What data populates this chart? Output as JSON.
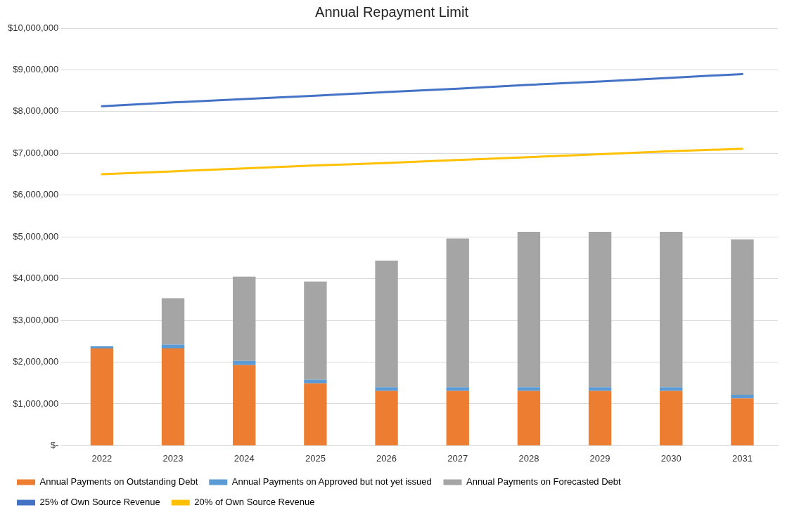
{
  "chart_data": {
    "type": "bar",
    "title": "Annual Repayment Limit",
    "stacked": true,
    "grid": "y",
    "legend": "bottom",
    "categories": [
      "2022",
      "2023",
      "2024",
      "2025",
      "2026",
      "2027",
      "2028",
      "2029",
      "2030",
      "2031"
    ],
    "ylim": [
      0,
      10000000
    ],
    "yticks": [
      {
        "value": 0,
        "label": "$-"
      },
      {
        "value": 1000000,
        "label": "$1,000,000"
      },
      {
        "value": 2000000,
        "label": "$2,000,000"
      },
      {
        "value": 3000000,
        "label": "$3,000,000"
      },
      {
        "value": 4000000,
        "label": "$4,000,000"
      },
      {
        "value": 5000000,
        "label": "$5,000,000"
      },
      {
        "value": 6000000,
        "label": "$6,000,000"
      },
      {
        "value": 7000000,
        "label": "$7,000,000"
      },
      {
        "value": 8000000,
        "label": "$8,000,000"
      },
      {
        "value": 9000000,
        "label": "$9,000,000"
      },
      {
        "value": 10000000,
        "label": "$10,000,000"
      }
    ],
    "series": [
      {
        "name": "Annual Payments on Outstanding Debt",
        "color": "#ed7d31",
        "values": [
          2330000,
          2330000,
          1930000,
          1490000,
          1310000,
          1310000,
          1310000,
          1310000,
          1310000,
          1130000
        ]
      },
      {
        "name": "Annual Payments on Approved but not yet issued",
        "color": "#5b9bd5",
        "values": [
          50000,
          90000,
          100000,
          90000,
          90000,
          90000,
          90000,
          90000,
          90000,
          90000
        ]
      },
      {
        "name": "Annual Payments on Forecasted Debt",
        "color": "#a5a5a5",
        "values": [
          null,
          1110000,
          2020000,
          2350000,
          3030000,
          3560000,
          3720000,
          3720000,
          3720000,
          3720000
        ]
      },
      {
        "name": "25% of Own Source Revenue",
        "type": "line",
        "color": "#4472c4",
        "marker": "none",
        "values": [
          8130000,
          8220000,
          8300000,
          8380000,
          8470000,
          8550000,
          8640000,
          8720000,
          8810000,
          8900000
        ]
      },
      {
        "name": "20% of Own Source Revenue",
        "type": "line",
        "color": "#ffc000",
        "marker": "none",
        "values": [
          6500000,
          6570000,
          6640000,
          6710000,
          6770000,
          6840000,
          6910000,
          6980000,
          7050000,
          7110000
        ]
      }
    ]
  }
}
